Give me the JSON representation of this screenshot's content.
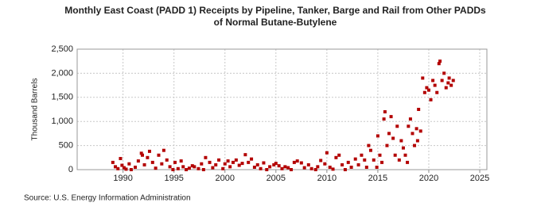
{
  "chart_data": {
    "type": "scatter",
    "title": [
      "Monthly East Coast (PADD 1) Receipts by Pipeline, Tanker, Barge and Rail from Other PADDs",
      "of Normal Butane-Butylene"
    ],
    "y_label": "Thousand Barrels",
    "source": "Source: U.S. Energy Information Administration",
    "color": "#b30000",
    "grid": true,
    "xlim": [
      1985.5,
      2025.7
    ],
    "ylim": [
      0,
      2500
    ],
    "xticks": [
      1990,
      1995,
      2000,
      2005,
      2010,
      2015,
      2020,
      2025
    ],
    "yticks": [
      0,
      500,
      {
        "value": 1000,
        "label": "1,000"
      },
      {
        "value": 1500,
        "label": "1,500"
      },
      {
        "value": 2000,
        "label": "2,000"
      },
      {
        "value": 2500,
        "label": "2,500"
      }
    ],
    "x": [
      1989.0,
      1989.25,
      1989.5,
      1989.75,
      1989.9,
      1990.1,
      1990.3,
      1990.6,
      1990.8,
      1991.2,
      1991.5,
      1991.8,
      1991.9,
      1992.1,
      1992.4,
      1992.6,
      1992.9,
      1993.2,
      1993.5,
      1993.8,
      1994.0,
      1994.3,
      1994.6,
      1994.9,
      1995.1,
      1995.4,
      1995.7,
      1995.9,
      1996.2,
      1996.5,
      1996.8,
      1997.0,
      1997.4,
      1997.7,
      1997.9,
      1998.1,
      1998.5,
      1998.8,
      1999.1,
      1999.4,
      1999.8,
      2000.0,
      2000.3,
      2000.5,
      2000.8,
      2001.1,
      2001.4,
      2001.7,
      2002.0,
      2002.3,
      2002.6,
      2002.9,
      2003.2,
      2003.5,
      2003.8,
      2004.1,
      2004.4,
      2004.8,
      2005.0,
      2005.3,
      2005.6,
      2005.9,
      2006.2,
      2006.5,
      2006.8,
      2007.1,
      2007.5,
      2007.8,
      2008.2,
      2008.5,
      2008.9,
      2009.1,
      2009.4,
      2009.8,
      2010.0,
      2010.3,
      2010.6,
      2010.9,
      2011.2,
      2011.5,
      2011.8,
      2012.1,
      2012.4,
      2012.8,
      2013.1,
      2013.4,
      2013.7,
      2013.9,
      2014.1,
      2014.3,
      2014.6,
      2014.9,
      2015.0,
      2015.2,
      2015.4,
      2015.6,
      2015.7,
      2015.9,
      2016.1,
      2016.3,
      2016.5,
      2016.7,
      2016.9,
      2017.1,
      2017.3,
      2017.5,
      2017.7,
      2017.9,
      2018.0,
      2018.2,
      2018.4,
      2018.6,
      2018.8,
      2018.9,
      2019.0,
      2019.2,
      2019.4,
      2019.6,
      2019.8,
      2020.0,
      2020.2,
      2020.4,
      2020.6,
      2020.8,
      2021.0,
      2021.1,
      2021.3,
      2021.5,
      2021.7,
      2021.9,
      2022.0,
      2022.2,
      2022.4
    ],
    "values": [
      150,
      60,
      20,
      230,
      90,
      40,
      10,
      120,
      0,
      50,
      180,
      340,
      300,
      100,
      250,
      380,
      150,
      30,
      300,
      120,
      400,
      200,
      60,
      0,
      150,
      20,
      180,
      60,
      0,
      30,
      80,
      60,
      20,
      120,
      0,
      250,
      150,
      40,
      100,
      200,
      20,
      120,
      180,
      60,
      150,
      200,
      90,
      130,
      310,
      150,
      220,
      50,
      100,
      20,
      140,
      0,
      60,
      100,
      130,
      80,
      20,
      60,
      40,
      0,
      150,
      180,
      140,
      40,
      100,
      20,
      0,
      60,
      190,
      120,
      350,
      50,
      10,
      250,
      300,
      100,
      0,
      150,
      50,
      220,
      100,
      300,
      200,
      50,
      500,
      400,
      200,
      50,
      700,
      300,
      150,
      1050,
      1200,
      500,
      750,
      1100,
      650,
      300,
      900,
      200,
      600,
      450,
      300,
      150,
      900,
      1050,
      750,
      500,
      850,
      600,
      1250,
      800,
      1900,
      1600,
      1700,
      1650,
      1450,
      1850,
      1750,
      1600,
      2200,
      2250,
      1850,
      2000,
      1700,
      1800,
      1900,
      1750,
      1850
    ]
  }
}
